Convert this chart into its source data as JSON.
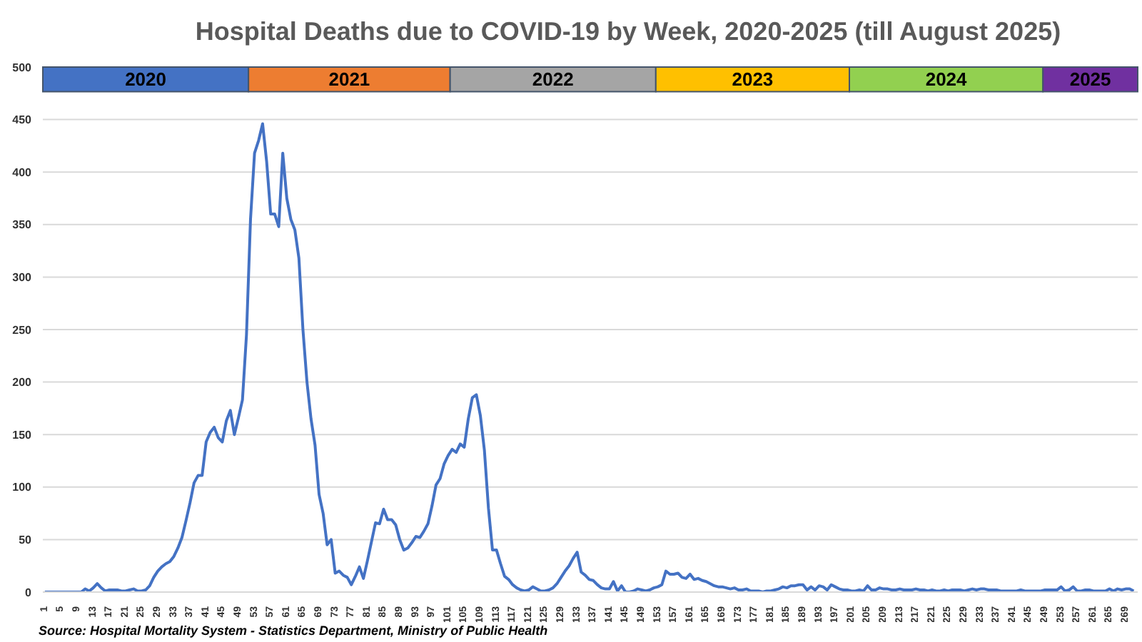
{
  "chart_data": {
    "type": "line",
    "title": "Hospital Deaths due to COVID-19 by Week, 2020-2025 (till August 2025)",
    "annotations": [
      "Source: Hospital Mortality System - Statistics Department, Ministry of Public Health"
    ],
    "x": [
      1,
      2,
      3,
      4,
      5,
      6,
      7,
      8,
      9,
      10,
      11,
      12,
      13,
      14,
      15,
      16,
      17,
      18,
      19,
      20,
      21,
      22,
      23,
      24,
      25,
      26,
      27,
      28,
      29,
      30,
      31,
      32,
      33,
      34,
      35,
      36,
      37,
      38,
      39,
      40,
      41,
      42,
      43,
      44,
      45,
      46,
      47,
      48,
      49,
      50,
      51,
      52,
      53,
      54,
      55,
      56,
      57,
      58,
      59,
      60,
      61,
      62,
      63,
      64,
      65,
      66,
      67,
      68,
      69,
      70,
      71,
      72,
      73,
      74,
      75,
      76,
      77,
      78,
      79,
      80,
      81,
      82,
      83,
      84,
      85,
      86,
      87,
      88,
      89,
      90,
      91,
      92,
      93,
      94,
      95,
      96,
      97,
      98,
      99,
      100,
      101,
      102,
      103,
      104,
      105,
      106,
      107,
      108,
      109,
      110,
      111,
      112,
      113,
      114,
      115,
      116,
      117,
      118,
      119,
      120,
      121,
      122,
      123,
      124,
      125,
      126,
      127,
      128,
      129,
      130,
      131,
      132,
      133,
      134,
      135,
      136,
      137,
      138,
      139,
      140,
      141,
      142,
      143,
      144,
      145,
      146,
      147,
      148,
      149,
      150,
      151,
      152,
      153,
      154,
      155,
      156,
      157,
      158,
      159,
      160,
      161,
      162,
      163,
      164,
      165,
      166,
      167,
      168,
      169,
      170,
      171,
      172,
      173,
      174,
      175,
      176,
      177,
      178,
      179,
      180,
      181,
      182,
      183,
      184,
      185,
      186,
      187,
      188,
      189,
      190,
      191,
      192,
      193,
      194,
      195,
      196,
      197,
      198,
      199,
      200,
      201,
      202,
      203,
      204,
      205,
      206,
      207,
      208,
      209,
      210,
      211,
      212,
      213,
      214,
      215,
      216,
      217,
      218,
      219,
      220,
      221,
      222,
      223,
      224,
      225,
      226,
      227,
      228,
      229,
      230,
      231,
      232,
      233,
      234,
      235,
      236,
      237,
      238,
      239,
      240,
      241,
      242,
      243,
      244,
      245,
      246,
      247,
      248,
      249,
      250,
      251,
      252,
      253,
      254,
      255,
      256,
      257,
      258,
      259,
      260,
      261,
      262,
      263,
      264,
      265,
      266,
      267,
      268,
      269,
      270,
      271
    ],
    "values": [
      0,
      0,
      0,
      0,
      0,
      0,
      0,
      0,
      0,
      0,
      3,
      1,
      4,
      8,
      4,
      1,
      2,
      2,
      2,
      1,
      1,
      2,
      3,
      1,
      1,
      2,
      6,
      14,
      20,
      24,
      27,
      29,
      34,
      42,
      52,
      68,
      85,
      104,
      111,
      111,
      143,
      152,
      157,
      147,
      143,
      163,
      173,
      150,
      166,
      183,
      245,
      355,
      418,
      430,
      446,
      410,
      360,
      360,
      348,
      418,
      375,
      355,
      345,
      318,
      250,
      200,
      165,
      140,
      93,
      75,
      45,
      50,
      18,
      20,
      16,
      14,
      7,
      15,
      24,
      13,
      30,
      48,
      66,
      65,
      79,
      69,
      69,
      64,
      50,
      40,
      42,
      47,
      53,
      52,
      58,
      65,
      82,
      102,
      108,
      122,
      130,
      136,
      133,
      141,
      138,
      165,
      185,
      188,
      168,
      135,
      80,
      40,
      40,
      27,
      15,
      12,
      7,
      4,
      2,
      1,
      2,
      5,
      3,
      1,
      1,
      2,
      4,
      8,
      14,
      20,
      25,
      32,
      38,
      19,
      16,
      12,
      11,
      7,
      4,
      3,
      3,
      10,
      1,
      6,
      0,
      0,
      1,
      3,
      2,
      1,
      2,
      4,
      5,
      7,
      20,
      17,
      17,
      18,
      14,
      13,
      17,
      12,
      13,
      11,
      10,
      8,
      6,
      5,
      5,
      4,
      3,
      4,
      2,
      2,
      3,
      1,
      1,
      1,
      0,
      1,
      1,
      2,
      3,
      5,
      4,
      6,
      6,
      7,
      7,
      2,
      5,
      2,
      6,
      5,
      2,
      7,
      5,
      3,
      2,
      2,
      1,
      1,
      2,
      1,
      6,
      2,
      2,
      4,
      3,
      3,
      2,
      2,
      3,
      2,
      2,
      2,
      3,
      2,
      2,
      1,
      2,
      1,
      1,
      2,
      1,
      2,
      2,
      2,
      1,
      2,
      3,
      2,
      3,
      3,
      2,
      2,
      2,
      1,
      1,
      1,
      1,
      1,
      2,
      1,
      1,
      1,
      1,
      1,
      2,
      2,
      2,
      2,
      5,
      1,
      2,
      5,
      1,
      1,
      2,
      2,
      1,
      1,
      1,
      1,
      3,
      1,
      3,
      2,
      3,
      3,
      1
    ],
    "color": "#4472c4",
    "marker": "none",
    "line_style": "solid",
    "xlim": [
      0.5,
      272
    ],
    "xticks": [
      1,
      5,
      9,
      13,
      17,
      21,
      25,
      29,
      33,
      37,
      41,
      45,
      49,
      53,
      57,
      61,
      65,
      69,
      73,
      77,
      81,
      85,
      89,
      93,
      97,
      101,
      105,
      109,
      113,
      117,
      121,
      125,
      129,
      133,
      137,
      141,
      145,
      149,
      153,
      157,
      161,
      165,
      169,
      173,
      177,
      181,
      185,
      189,
      193,
      197,
      201,
      205,
      209,
      213,
      217,
      221,
      225,
      229,
      233,
      237,
      241,
      245,
      249,
      253,
      257,
      261,
      265,
      269
    ],
    "ylim": [
      0,
      500
    ],
    "yticks": [
      0,
      50,
      100,
      150,
      200,
      250,
      300,
      350,
      400,
      450,
      500
    ],
    "grid": "y",
    "bands": [
      {
        "axis": "x",
        "from": 0.5,
        "to": 51.5,
        "label": "2020",
        "color": "#4472c4"
      },
      {
        "axis": "x",
        "from": 51.5,
        "to": 101.5,
        "label": "2021",
        "color": "#ed7d31"
      },
      {
        "axis": "x",
        "from": 101.5,
        "to": 152.5,
        "label": "2022",
        "color": "#a5a5a5"
      },
      {
        "axis": "x",
        "from": 152.5,
        "to": 200.5,
        "label": "2023",
        "color": "#ffc000"
      },
      {
        "axis": "x",
        "from": 200.5,
        "to": 248.5,
        "label": "2024",
        "color": "#92d050"
      },
      {
        "axis": "x",
        "from": 248.5,
        "to": 272,
        "label": "2025",
        "color": "#7030a0"
      }
    ]
  }
}
